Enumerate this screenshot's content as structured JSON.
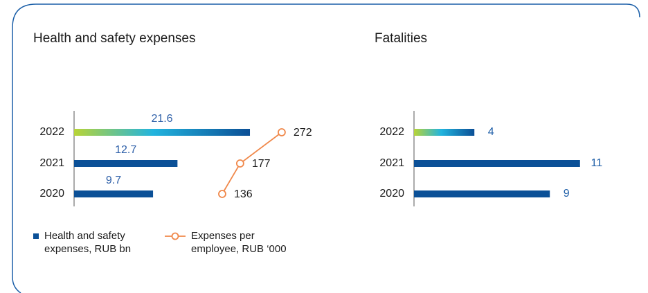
{
  "chart_data": [
    {
      "type": "bar",
      "title": "Health and safety expenses",
      "categories": [
        "2022",
        "2021",
        "2020"
      ],
      "series": [
        {
          "name": "Health and safety expenses, RUB bn",
          "color": "#0b5097",
          "values": [
            21.6,
            12.7,
            9.7
          ]
        },
        {
          "name": "Expenses per employee, RUB ‘000",
          "color": "#f0884a",
          "type": "line",
          "values": [
            272,
            177,
            136
          ]
        }
      ]
    },
    {
      "type": "bar",
      "title": "Fatalities",
      "categories": [
        "2022",
        "2021",
        "2020"
      ],
      "color": "#0b5097",
      "values": [
        4,
        11,
        9
      ]
    }
  ]
}
